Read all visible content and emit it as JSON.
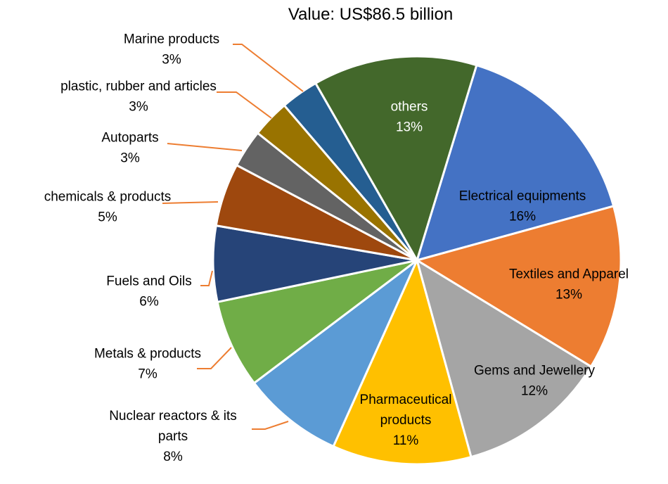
{
  "chart_data": {
    "type": "pie",
    "title": "Value: US$86.5 billion",
    "slices": [
      {
        "name": "Electrical equipments",
        "lines": [
          "Electrical equipments"
        ],
        "value": 16,
        "value_label": "16%",
        "color": "#4472C4",
        "label_color": "#000000",
        "label_position": "inside"
      },
      {
        "name": "Textiles and Apparel",
        "lines": [
          "Textiles and Apparel"
        ],
        "value": 13,
        "value_label": "13%",
        "color": "#ED7D31",
        "label_color": "#000000",
        "label_position": "inside"
      },
      {
        "name": "Gems and Jewellery",
        "lines": [
          "Gems and Jewellery"
        ],
        "value": 12,
        "value_label": "12%",
        "color": "#A5A5A5",
        "label_color": "#000000",
        "label_position": "inside"
      },
      {
        "name": "Pharmaceutical products",
        "lines": [
          "Pharmaceutical",
          "products"
        ],
        "value": 11,
        "value_label": "11%",
        "color": "#FFC000",
        "label_color": "#000000",
        "label_position": "inside"
      },
      {
        "name": "Nuclear reactors & its parts",
        "lines": [
          "Nuclear reactors & its",
          "parts"
        ],
        "value": 8,
        "value_label": "8%",
        "color": "#5B9BD5",
        "label_color": "#000000",
        "label_position": "outside"
      },
      {
        "name": "Metals & products",
        "lines": [
          "Metals & products"
        ],
        "value": 7,
        "value_label": "7%",
        "color": "#70AD47",
        "label_color": "#000000",
        "label_position": "outside"
      },
      {
        "name": "Fuels and Oils",
        "lines": [
          "Fuels and Oils"
        ],
        "value": 6,
        "value_label": "6%",
        "color": "#264478",
        "label_color": "#000000",
        "label_position": "outside"
      },
      {
        "name": "chemicals & products",
        "lines": [
          "chemicals & products"
        ],
        "value": 5,
        "value_label": "5%",
        "color": "#9E480E",
        "label_color": "#000000",
        "label_position": "outside"
      },
      {
        "name": "Autoparts",
        "lines": [
          "Autoparts"
        ],
        "value": 3,
        "value_label": "3%",
        "color": "#636363",
        "label_color": "#000000",
        "label_position": "outside"
      },
      {
        "name": "plastic, rubber and articles",
        "lines": [
          "plastic, rubber and articles"
        ],
        "value": 3,
        "value_label": "3%",
        "color": "#997300",
        "label_color": "#000000",
        "label_position": "outside"
      },
      {
        "name": "Marine products",
        "lines": [
          "Marine products"
        ],
        "value": 3,
        "value_label": "3%",
        "color": "#255E91",
        "label_color": "#000000",
        "label_position": "outside"
      },
      {
        "name": "others",
        "lines": [
          "others"
        ],
        "value": 13,
        "value_label": "13%",
        "color": "#43682B",
        "label_color": "#FFFFFF",
        "label_position": "inside"
      }
    ],
    "leader_line_color": "#ED7D31",
    "legend": "none"
  }
}
